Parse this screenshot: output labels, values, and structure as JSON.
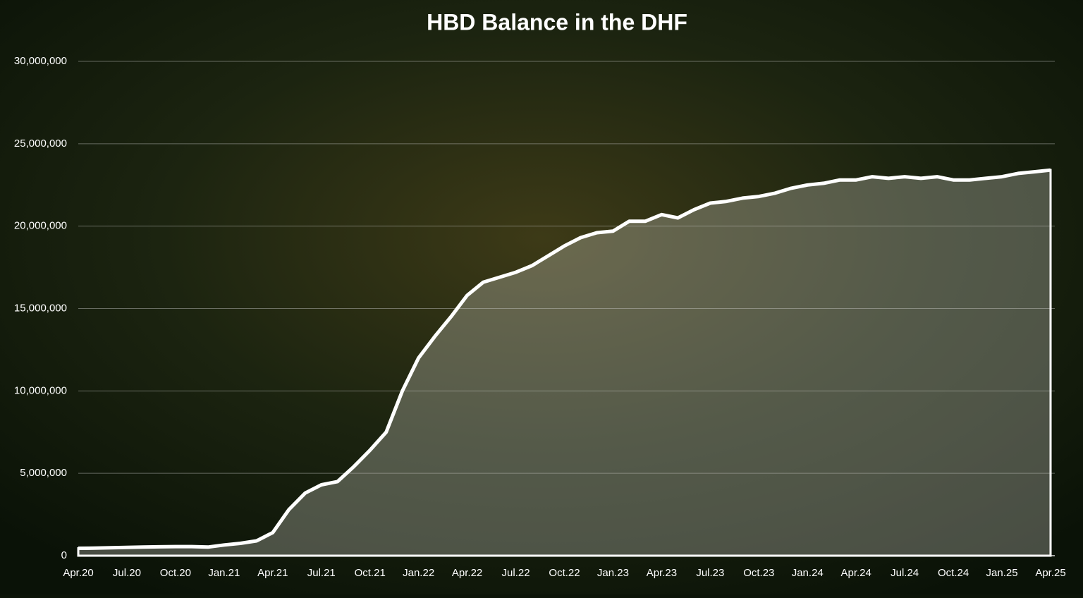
{
  "chart_data": {
    "type": "area",
    "title": "HBD Balance in the DHF",
    "categories": [
      "Apr.20",
      null,
      null,
      "Jul.20",
      null,
      null,
      "Oct.20",
      null,
      null,
      "Jan.21",
      null,
      null,
      "Apr.21",
      null,
      null,
      "Jul.21",
      null,
      null,
      "Oct.21",
      null,
      null,
      "Jan.22",
      null,
      null,
      "Apr.22",
      null,
      null,
      "Jul.22",
      null,
      null,
      "Oct.22",
      null,
      null,
      "Jan.23",
      null,
      null,
      "Apr.23",
      null,
      null,
      "Jul.23",
      null,
      null,
      "Oct.23",
      null,
      null,
      "Jan.24",
      null,
      null,
      "Apr.24",
      null,
      null,
      "Jul.24",
      null,
      null,
      "Oct.24",
      null,
      null,
      "Jan.25",
      null,
      null,
      "Apr.25"
    ],
    "values": [
      450000,
      460000,
      480000,
      500000,
      520000,
      540000,
      550000,
      550000,
      520000,
      650000,
      750000,
      900000,
      1400000,
      2800000,
      3800000,
      4300000,
      4500000,
      5400000,
      6400000,
      7500000,
      10000000,
      12000000,
      13300000,
      14500000,
      15800000,
      16600000,
      16900000,
      17200000,
      17600000,
      18200000,
      18800000,
      19300000,
      19600000,
      19700000,
      20300000,
      20300000,
      20700000,
      20500000,
      21000000,
      21400000,
      21500000,
      21700000,
      21800000,
      22000000,
      22300000,
      22500000,
      22600000,
      22800000,
      22800000,
      23000000,
      22900000,
      23000000,
      22900000,
      23000000,
      22800000,
      22800000,
      22900000,
      23000000,
      23200000,
      23300000,
      23400000
    ],
    "color": "#ffffff",
    "area_color": "rgba(205,205,195,0.32)",
    "ylim": [
      0,
      30000000
    ],
    "yticks": [
      0,
      {
        "value": 5000000,
        "label": "5,000,000"
      },
      {
        "value": 10000000,
        "label": "10,000,000"
      },
      {
        "value": 15000000,
        "label": "15,000,000"
      },
      {
        "value": 20000000,
        "label": "20,000,000"
      },
      {
        "value": 25000000,
        "label": "25,000,000"
      },
      {
        "value": 30000000,
        "label": "30,000,000"
      }
    ],
    "grid": true
  }
}
